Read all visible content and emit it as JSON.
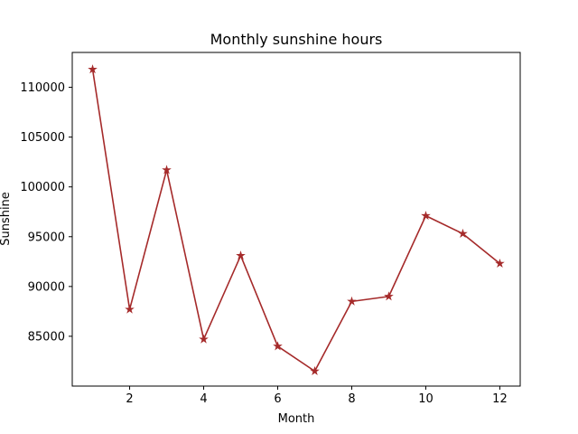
{
  "chart_data": {
    "type": "line",
    "title": "Monthly sunshine hours",
    "xlabel": "Month",
    "ylabel": "Sunshine",
    "x": [
      1,
      2,
      3,
      4,
      5,
      6,
      7,
      8,
      9,
      10,
      11,
      12
    ],
    "series": [
      {
        "values": [
          111800,
          87700,
          101700,
          84700,
          93100,
          84000,
          81500,
          88500,
          89000,
          97100,
          95300,
          92300
        ],
        "color": "#a52a2a",
        "marker": "star"
      }
    ],
    "xlim": [
      0.45,
      12.55
    ],
    "ylim": [
      80000,
      113500
    ],
    "xticks": [
      2,
      4,
      6,
      8,
      10,
      12
    ],
    "yticks": [
      85000,
      90000,
      95000,
      100000,
      105000,
      110000
    ],
    "grid": false,
    "legend": "none"
  }
}
